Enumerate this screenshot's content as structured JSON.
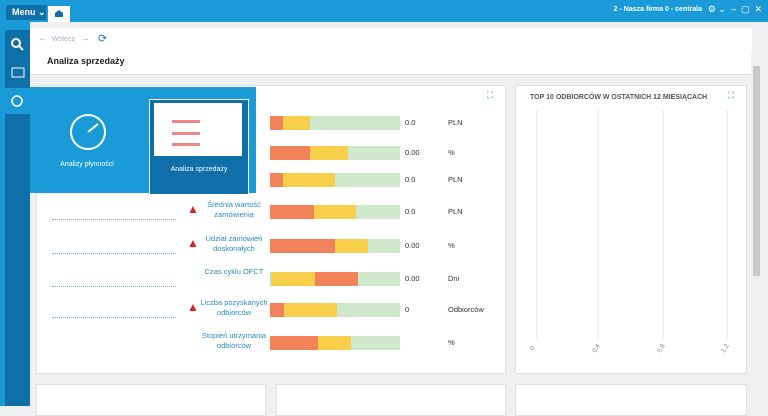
{
  "topbar": {
    "menu": "Menu",
    "company": "2 - Nasza firma 0 - centrala"
  },
  "toolbar": {
    "back": "Wstecz"
  },
  "header": {
    "title": "Analiza sprzedaży"
  },
  "flyout": {
    "tiles": [
      "Analizy płynności",
      "Analiza sprzedaży"
    ]
  },
  "kpis": [
    {
      "value": "0.0",
      "unit": "PLN"
    },
    {
      "value": "0.00",
      "unit": "%"
    },
    {
      "value": "0.0",
      "unit": "PLN"
    },
    {
      "label": "Średnia wartość zamówienia",
      "value": "0.0",
      "unit": "PLN"
    },
    {
      "label": "Udział zamówień doskonałych",
      "value": "0.00",
      "unit": "%"
    },
    {
      "label": "Czas cyklu OFCT",
      "value": "0.00",
      "unit": "Dni"
    },
    {
      "label": "Liczba pozyskanych odbiorców",
      "value": "0",
      "unit": "Odbiorców"
    },
    {
      "label": "Stopień utrzymania odbiorców",
      "unit": "%"
    }
  ],
  "top10": {
    "title": "TOP 10 ODBIORCÓW W OSTATNICH 12 MIESIĄCACH",
    "xticks": [
      "0",
      "0.4",
      "0.8",
      "1.2"
    ]
  }
}
